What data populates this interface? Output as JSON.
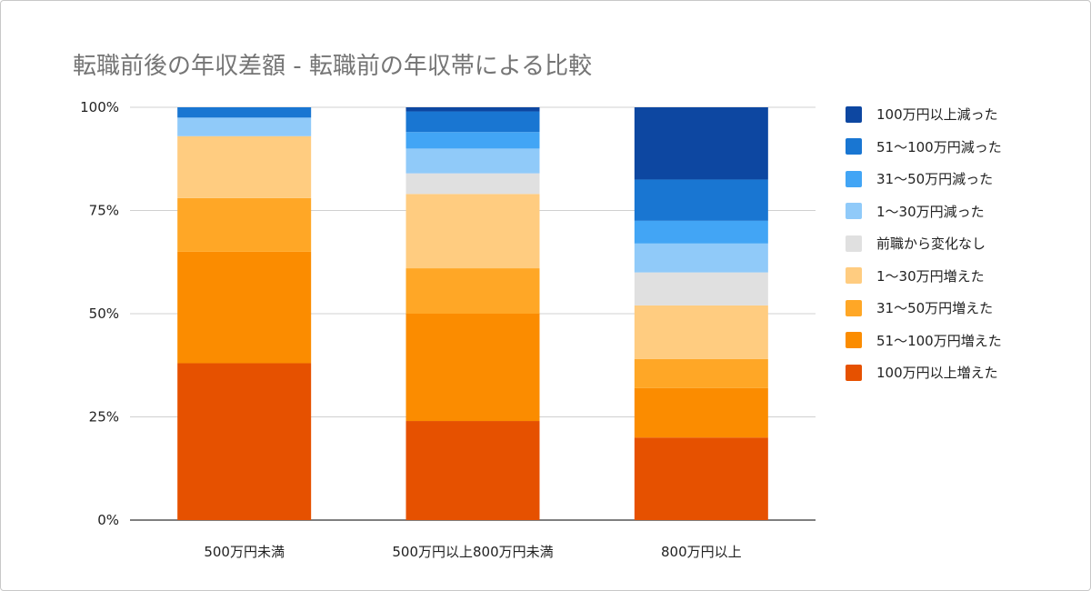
{
  "chart_data": {
    "type": "bar",
    "stacked": true,
    "normalized": true,
    "title": "転職前後の年収差額 - 転職前の年収帯による比較",
    "xlabel": "",
    "ylabel": "",
    "ylim": [
      0,
      100
    ],
    "yticks": [
      "0%",
      "25%",
      "50%",
      "75%",
      "100%"
    ],
    "grid": true,
    "legend_position": "right",
    "categories": [
      "500万円未満",
      "500万円以上800万円未満",
      "800万円以上"
    ],
    "series": [
      {
        "name": "100万円以上増えた",
        "color": "#E65100",
        "values": [
          38,
          24,
          20
        ]
      },
      {
        "name": "51〜100万円増えた",
        "color": "#FB8C00",
        "values": [
          27,
          26,
          12
        ]
      },
      {
        "name": "31〜50万円増えた",
        "color": "#FFA726",
        "values": [
          13,
          11,
          7
        ]
      },
      {
        "name": "1〜30万円増えた",
        "color": "#FFCC80",
        "values": [
          15,
          18,
          13
        ]
      },
      {
        "name": "前職から変化なし",
        "color": "#E0E0E0",
        "values": [
          0,
          5,
          8
        ]
      },
      {
        "name": "1〜30万円減った",
        "color": "#90CAF9",
        "values": [
          4.5,
          6,
          7
        ]
      },
      {
        "name": "31〜50万円減った",
        "color": "#42A5F5",
        "values": [
          0,
          4,
          5.5
        ]
      },
      {
        "name": "51〜100万円減った",
        "color": "#1976D2",
        "values": [
          2.5,
          5,
          10
        ]
      },
      {
        "name": "100万円以上減った",
        "color": "#0D47A1",
        "values": [
          0,
          1,
          17.5
        ]
      }
    ]
  }
}
